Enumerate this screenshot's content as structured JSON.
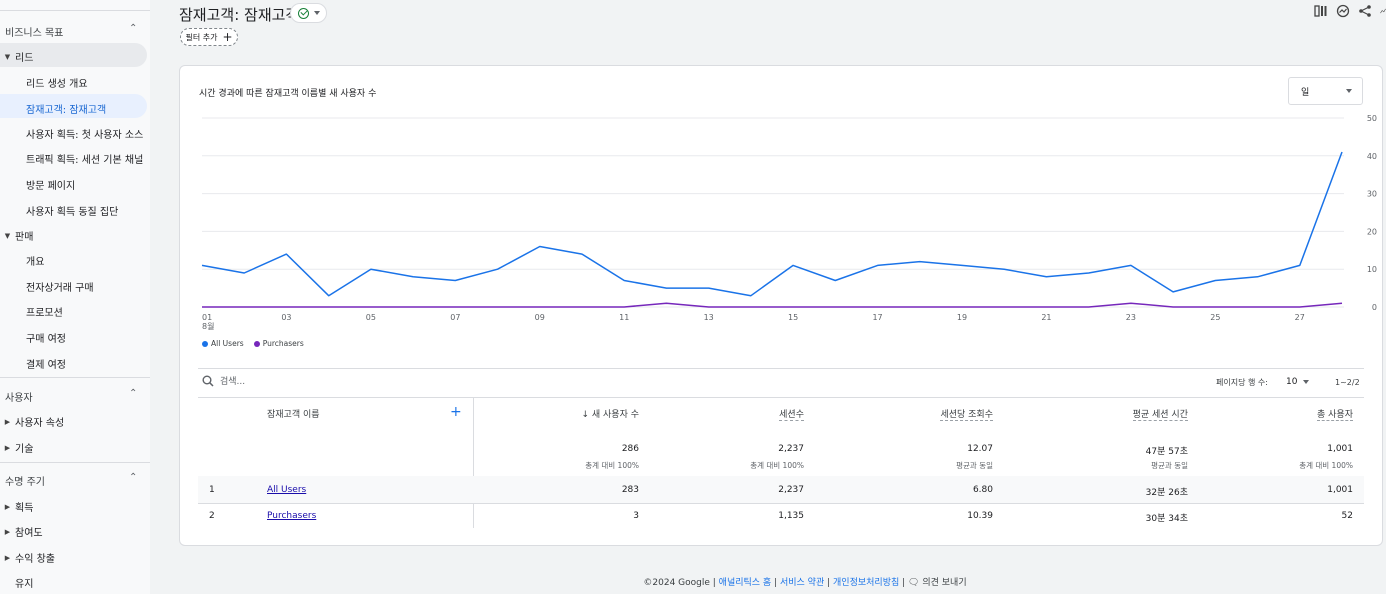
{
  "sidebar": {
    "sections": [
      {
        "label": "비즈니스 목표",
        "groups": [
          {
            "label": "리드",
            "items": [
              "리드 생성 개요",
              "잠재고객: 잠재고객",
              "사용자 획득: 첫 사용자 소스 / ...",
              "트래픽 획득: 세션 기본 채널 그...",
              "방문 페이지",
              "사용자 획득 동질 집단"
            ]
          },
          {
            "label": "판매",
            "items": [
              "개요",
              "전자상거래 구매",
              "프로모션",
              "구매 여정",
              "결제 여정"
            ]
          }
        ]
      },
      {
        "label": "사용자",
        "groups": [
          {
            "label": "사용자 속성"
          },
          {
            "label": "기술"
          }
        ]
      },
      {
        "label": "수명 주기",
        "groups": [
          {
            "label": "획득"
          },
          {
            "label": "참여도"
          },
          {
            "label": "수익 창출"
          },
          {
            "label": "유지"
          }
        ]
      }
    ]
  },
  "header": {
    "title": "잠재고객: 잠재고객",
    "filter_label": "필터 추가",
    "icons": [
      "compare-columns-icon",
      "insights-icon",
      "share-icon",
      "trend-icon"
    ]
  },
  "chart": {
    "title": "시간 경과에 따른 잠재고객 이름별 새 사용자 수",
    "granularity": "일",
    "colors": {
      "all_users": "#1a73e8",
      "purchasers": "#7627bb"
    }
  },
  "chart_data": {
    "type": "line",
    "x": [
      "01",
      "02",
      "03",
      "04",
      "05",
      "06",
      "07",
      "08",
      "09",
      "10",
      "11",
      "12",
      "13",
      "14",
      "15",
      "16",
      "17",
      "18",
      "19",
      "20",
      "21",
      "22",
      "23",
      "24",
      "25",
      "26",
      "27",
      "28"
    ],
    "x_tick_labels": [
      "01",
      "03",
      "05",
      "07",
      "09",
      "11",
      "13",
      "15",
      "17",
      "19",
      "21",
      "23",
      "25",
      "27"
    ],
    "x_sublabel": "8월",
    "ylim": [
      0,
      50
    ],
    "y_ticks": [
      0,
      10,
      20,
      30,
      40,
      50
    ],
    "series": [
      {
        "name": "All Users",
        "values": [
          11,
          9,
          14,
          3,
          10,
          8,
          7,
          10,
          16,
          14,
          7,
          5,
          5,
          3,
          11,
          7,
          11,
          12,
          11,
          10,
          8,
          9,
          11,
          4,
          7,
          8,
          11,
          41
        ]
      },
      {
        "name": "Purchasers",
        "values": [
          0,
          0,
          0,
          0,
          0,
          0,
          0,
          0,
          0,
          0,
          0,
          1,
          0,
          0,
          0,
          0,
          0,
          0,
          0,
          0,
          0,
          0,
          1,
          0,
          0,
          0,
          0,
          1
        ]
      }
    ]
  },
  "table": {
    "search_placeholder": "검색...",
    "rows_per_page_label": "페이지당 행 수:",
    "rows_per_page_value": "10",
    "pagination": "1~2/2",
    "dimension_header": "잠재고객 이름",
    "columns": [
      "↓ 새 사용자 수",
      "세션수",
      "세션당 조회수",
      "평균 세션 시간",
      "총 사용자"
    ],
    "totals": [
      {
        "value": "286",
        "sub": "총계 대비 100%"
      },
      {
        "value": "2,237",
        "sub": "총계 대비 100%"
      },
      {
        "value": "12.07",
        "sub": "평균과 동일"
      },
      {
        "value": "47분 57초",
        "sub": "평균과 동일"
      },
      {
        "value": "1,001",
        "sub": "총계 대비 100%"
      }
    ],
    "rows": [
      {
        "index": "1",
        "name": "All Users",
        "values": [
          "283",
          "2,237",
          "6.80",
          "32분 26초",
          "1,001"
        ]
      },
      {
        "index": "2",
        "name": "Purchasers",
        "values": [
          "3",
          "1,135",
          "10.39",
          "30분 34초",
          "52"
        ]
      }
    ]
  },
  "footer": {
    "copyright": "©2024 Google |",
    "links": [
      "애널리틱스 홈",
      "서비스 약관",
      "개인정보처리방침"
    ],
    "feedback": "의견 보내기"
  }
}
